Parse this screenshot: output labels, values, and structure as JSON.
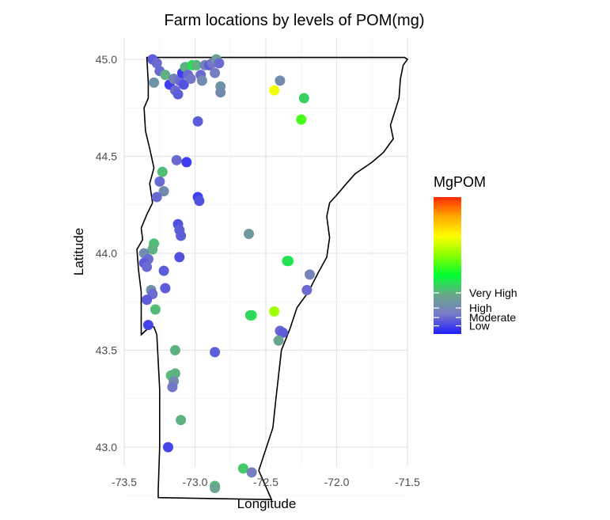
{
  "chart_data": {
    "type": "scatter",
    "title": "Farm locations by levels of POM(mg)",
    "xlabel": "Longitude",
    "ylabel": "Latitude",
    "xlim": [
      -73.5,
      -71.5
    ],
    "ylim": [
      42.7,
      45.03
    ],
    "x_ticks": [
      -73.5,
      -73.0,
      -72.5,
      -72.0,
      -71.5
    ],
    "x_tick_labels": [
      "-73.5",
      "-73.0",
      "-72.5",
      "-72.0",
      "-71.5"
    ],
    "y_ticks": [
      43.0,
      43.5,
      44.0,
      44.5,
      45.0
    ],
    "y_tick_labels": [
      "43.0",
      "43.5",
      "44.0",
      "44.5",
      "45.0"
    ],
    "grid": true,
    "legend": {
      "title": "MgPOM",
      "position": "right",
      "labels": [
        {
          "text": "Very High",
          "level": 0.3
        },
        {
          "text": "High",
          "level": 0.19
        },
        {
          "text": "Moderate",
          "level": 0.12
        },
        {
          "text": "Low",
          "level": 0.06
        }
      ],
      "gradient": [
        "#1f1fff",
        "#7878c8",
        "#6aa88a",
        "#00ff33",
        "#88ff00",
        "#ffff00",
        "#ffaa00",
        "#ff2a00"
      ]
    },
    "outline": [
      [
        -73.34,
        45.01
      ],
      [
        -72.52,
        45.01
      ],
      [
        -71.52,
        45.01
      ],
      [
        -71.5,
        45.0
      ],
      [
        -71.53,
        44.97
      ],
      [
        -71.55,
        44.9
      ],
      [
        -71.56,
        44.8
      ],
      [
        -71.59,
        44.73
      ],
      [
        -71.62,
        44.66
      ],
      [
        -71.6,
        44.59
      ],
      [
        -71.67,
        44.52
      ],
      [
        -71.75,
        44.47
      ],
      [
        -71.87,
        44.41
      ],
      [
        -71.93,
        44.36
      ],
      [
        -72.0,
        44.3
      ],
      [
        -72.05,
        44.26
      ],
      [
        -72.07,
        44.19
      ],
      [
        -72.05,
        44.08
      ],
      [
        -72.07,
        43.98
      ],
      [
        -72.13,
        43.9
      ],
      [
        -72.2,
        43.8
      ],
      [
        -72.28,
        43.72
      ],
      [
        -72.33,
        43.61
      ],
      [
        -72.39,
        43.5
      ],
      [
        -72.41,
        43.37
      ],
      [
        -72.43,
        43.24
      ],
      [
        -72.45,
        43.1
      ],
      [
        -72.5,
        42.99
      ],
      [
        -72.55,
        42.88
      ],
      [
        -72.46,
        42.73
      ],
      [
        -73.26,
        42.74
      ],
      [
        -73.26,
        42.78
      ],
      [
        -73.25,
        43.0
      ],
      [
        -73.25,
        43.3
      ],
      [
        -73.27,
        43.58
      ],
      [
        -73.29,
        43.62
      ],
      [
        -73.32,
        43.62
      ],
      [
        -73.38,
        43.58
      ],
      [
        -73.38,
        43.7
      ],
      [
        -73.38,
        43.8
      ],
      [
        -73.4,
        43.92
      ],
      [
        -73.41,
        44.02
      ],
      [
        -73.37,
        44.07
      ],
      [
        -73.38,
        44.13
      ],
      [
        -73.34,
        44.2
      ],
      [
        -73.3,
        44.26
      ],
      [
        -73.32,
        44.36
      ],
      [
        -73.29,
        44.44
      ],
      [
        -73.32,
        44.54
      ],
      [
        -73.35,
        44.63
      ],
      [
        -73.36,
        44.75
      ],
      [
        -73.33,
        44.8
      ],
      [
        -73.33,
        44.88
      ],
      [
        -73.34,
        45.01
      ]
    ],
    "series": [
      {
        "points": [
          [
            -73.3,
            45.0,
            0.1
          ],
          [
            -73.27,
            44.98,
            0.12
          ],
          [
            -73.29,
            44.88,
            0.22
          ],
          [
            -73.25,
            44.94,
            0.12
          ],
          [
            -73.21,
            44.92,
            0.3
          ],
          [
            -73.18,
            44.87,
            0.05
          ],
          [
            -73.15,
            44.9,
            0.18
          ],
          [
            -73.14,
            44.84,
            0.12
          ],
          [
            -73.12,
            44.82,
            0.1
          ],
          [
            -73.11,
            44.89,
            0.12
          ],
          [
            -73.09,
            44.93,
            0.05
          ],
          [
            -73.07,
            44.96,
            0.3
          ],
          [
            -73.08,
            44.87,
            0.08
          ],
          [
            -73.05,
            44.92,
            0.12
          ],
          [
            -73.03,
            44.9,
            0.14
          ],
          [
            -73.02,
            44.97,
            0.38
          ],
          [
            -72.99,
            44.97,
            0.3
          ],
          [
            -72.96,
            44.92,
            0.12
          ],
          [
            -72.95,
            44.89,
            0.2
          ],
          [
            -72.93,
            44.97,
            0.18
          ],
          [
            -72.9,
            44.97,
            0.1
          ],
          [
            -72.88,
            44.98,
            0.14
          ],
          [
            -72.86,
            44.93,
            0.16
          ],
          [
            -72.85,
            45.0,
            0.25
          ],
          [
            -72.83,
            44.98,
            0.12
          ],
          [
            -72.82,
            44.86,
            0.22
          ],
          [
            -72.82,
            44.83,
            0.2
          ],
          [
            -72.4,
            44.89,
            0.2
          ],
          [
            -72.44,
            44.84,
            0.7
          ],
          [
            -72.23,
            44.8,
            0.35
          ],
          [
            -72.25,
            44.69,
            0.5
          ],
          [
            -72.98,
            44.68,
            0.1
          ],
          [
            -73.23,
            44.42,
            0.32
          ],
          [
            -73.13,
            44.48,
            0.12
          ],
          [
            -73.06,
            44.47,
            0.05
          ],
          [
            -73.25,
            44.37,
            0.12
          ],
          [
            -73.22,
            44.32,
            0.2
          ],
          [
            -73.27,
            44.29,
            0.12
          ],
          [
            -72.98,
            44.29,
            0.05
          ],
          [
            -72.97,
            44.27,
            0.08
          ],
          [
            -73.12,
            44.15,
            0.08
          ],
          [
            -73.11,
            44.12,
            0.1
          ],
          [
            -73.1,
            44.09,
            0.1
          ],
          [
            -73.29,
            44.05,
            0.32
          ],
          [
            -73.3,
            44.02,
            0.3
          ],
          [
            -72.62,
            44.1,
            0.24
          ],
          [
            -73.36,
            44.0,
            0.2
          ],
          [
            -73.33,
            43.97,
            0.12
          ],
          [
            -73.36,
            43.95,
            0.1
          ],
          [
            -73.34,
            43.93,
            0.12
          ],
          [
            -73.11,
            43.98,
            0.08
          ],
          [
            -73.22,
            43.91,
            0.1
          ],
          [
            -72.34,
            43.96,
            0.42
          ],
          [
            -72.35,
            43.96,
            0.38
          ],
          [
            -72.19,
            43.89,
            0.18
          ],
          [
            -73.21,
            43.82,
            0.1
          ],
          [
            -73.31,
            43.81,
            0.22
          ],
          [
            -73.3,
            43.79,
            0.12
          ],
          [
            -73.34,
            43.76,
            0.1
          ],
          [
            -72.21,
            43.81,
            0.12
          ],
          [
            -73.28,
            43.71,
            0.32
          ],
          [
            -72.6,
            43.68,
            0.42
          ],
          [
            -72.61,
            43.68,
            0.36
          ],
          [
            -72.44,
            43.7,
            0.6
          ],
          [
            -73.33,
            43.63,
            0.06
          ],
          [
            -72.4,
            43.6,
            0.12
          ],
          [
            -72.38,
            43.59,
            0.1
          ],
          [
            -72.41,
            43.55,
            0.28
          ],
          [
            -73.14,
            43.5,
            0.3
          ],
          [
            -72.86,
            43.49,
            0.1
          ],
          [
            -73.17,
            43.37,
            0.32
          ],
          [
            -73.14,
            43.38,
            0.3
          ],
          [
            -73.15,
            43.34,
            0.2
          ],
          [
            -73.16,
            43.31,
            0.14
          ],
          [
            -73.1,
            43.14,
            0.3
          ],
          [
            -73.19,
            43.0,
            0.06
          ],
          [
            -72.66,
            42.89,
            0.34
          ],
          [
            -72.6,
            42.87,
            0.16
          ],
          [
            -72.86,
            42.8,
            0.32
          ],
          [
            -72.86,
            42.79,
            0.28
          ]
        ]
      }
    ]
  }
}
